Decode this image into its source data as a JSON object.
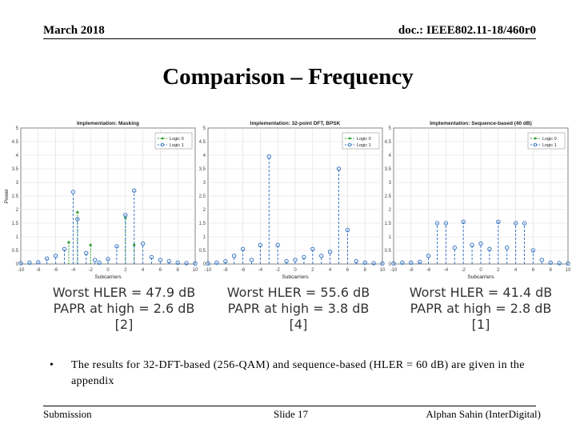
{
  "header": {
    "date": "March 2018",
    "doc": "doc.: IEEE802.11-18/460r0"
  },
  "title": "Comparison – Frequency",
  "charts": [
    {
      "title": "Implementation: Masking",
      "legend": [
        "Logic 0",
        "Logic 1"
      ],
      "xlabel": "Subcarriers",
      "ylabel": "Power",
      "caption": [
        "Worst HLER = 47.9 dB",
        "PAPR at high = 2.6 dB",
        "[2]"
      ]
    },
    {
      "title": "Implementation: 32-point DFT, BPSK",
      "legend": [
        "Logic 0",
        "Logic 1"
      ],
      "xlabel": "Subcarriers",
      "ylabel": "",
      "caption": [
        "Worst HLER = 55.6 dB",
        "PAPR at high = 3.8 dB",
        "[4]"
      ]
    },
    {
      "title": "Implementation: Sequence-based (40 dB)",
      "legend": [
        "Logic 0",
        "Logic 1"
      ],
      "xlabel": "Subcarriers",
      "ylabel": "",
      "caption": [
        "Worst HLER = 41.4 dB",
        "PAPR at high = 2.8 dB",
        "[1]"
      ]
    }
  ],
  "chart_data": [
    {
      "type": "scatter",
      "title": "Implementation: Masking",
      "xlabel": "Subcarriers",
      "ylabel": "Power",
      "xlim": [
        -10,
        10
      ],
      "ylim": [
        0,
        5
      ],
      "xticks": [
        -10,
        -8,
        -6,
        -4,
        -2,
        0,
        2,
        4,
        6,
        8,
        10
      ],
      "yticks": [
        0,
        0.5,
        1,
        1.5,
        2,
        2.5,
        3,
        3.5,
        4,
        4.5,
        5
      ],
      "grid": true,
      "legend_position": "top-right",
      "series": [
        {
          "name": "Logic 0",
          "color": "#2ca02c",
          "x": [
            -4.5,
            -3.5,
            -2,
            2,
            3
          ],
          "y": [
            0.8,
            1.9,
            0.7,
            1.7,
            0.7
          ]
        },
        {
          "name": "Logic 1",
          "color": "#3a77c4",
          "x": [
            -10,
            -9,
            -8,
            -7,
            -6,
            -5,
            -4,
            -3.5,
            -2.5,
            -1.5,
            -1,
            0,
            1,
            2,
            3,
            4,
            5,
            6,
            7,
            8,
            9,
            10
          ],
          "y": [
            0.03,
            0.05,
            0.06,
            0.2,
            0.3,
            0.55,
            2.65,
            1.65,
            0.4,
            0.15,
            0.05,
            0.18,
            0.65,
            1.8,
            2.7,
            0.75,
            0.25,
            0.15,
            0.1,
            0.05,
            0.03,
            0.02
          ]
        }
      ]
    },
    {
      "type": "scatter",
      "title": "Implementation: 32-point DFT, BPSK",
      "xlabel": "Subcarriers",
      "ylabel": "",
      "xlim": [
        -10,
        10
      ],
      "ylim": [
        0,
        5
      ],
      "xticks": [
        -10,
        -8,
        -6,
        -4,
        -2,
        0,
        2,
        4,
        6,
        8,
        10
      ],
      "yticks": [
        0,
        0.5,
        1,
        1.5,
        2,
        2.5,
        3,
        3.5,
        4,
        4.5,
        5
      ],
      "grid": true,
      "legend_position": "top-right",
      "series": [
        {
          "name": "Logic 0",
          "color": "#2ca02c",
          "x": [],
          "y": []
        },
        {
          "name": "Logic 1",
          "color": "#3a77c4",
          "x": [
            -10,
            -9,
            -8,
            -7,
            -6,
            -5,
            -4,
            -3,
            -2,
            -1,
            0,
            1,
            2,
            3,
            4,
            5,
            6,
            7,
            8,
            9,
            10
          ],
          "y": [
            0.02,
            0.05,
            0.1,
            0.3,
            0.55,
            0.15,
            0.7,
            3.95,
            0.7,
            0.1,
            0.15,
            0.25,
            0.55,
            0.3,
            0.45,
            3.5,
            1.25,
            0.1,
            0.05,
            0.03,
            0.02
          ]
        }
      ]
    },
    {
      "type": "scatter",
      "title": "Implementation: Sequence-based (40 dB)",
      "xlabel": "Subcarriers",
      "ylabel": "",
      "xlim": [
        -10,
        10
      ],
      "ylim": [
        0,
        5
      ],
      "xticks": [
        -10,
        -8,
        -6,
        -4,
        -2,
        0,
        2,
        4,
        6,
        8,
        10
      ],
      "yticks": [
        0,
        0.5,
        1,
        1.5,
        2,
        2.5,
        3,
        3.5,
        4,
        4.5,
        5
      ],
      "grid": true,
      "legend_position": "top-right",
      "series": [
        {
          "name": "Logic 0",
          "color": "#2ca02c",
          "x": [],
          "y": []
        },
        {
          "name": "Logic 1",
          "color": "#3a77c4",
          "x": [
            -10,
            -9,
            -8,
            -7,
            -6,
            -5,
            -4,
            -3,
            -2,
            -1,
            0,
            1,
            2,
            3,
            4,
            5,
            6,
            7,
            8,
            9,
            10
          ],
          "y": [
            0.02,
            0.05,
            0.05,
            0.08,
            0.3,
            1.5,
            1.5,
            0.6,
            1.55,
            0.7,
            0.75,
            0.55,
            1.55,
            0.6,
            1.5,
            1.5,
            0.5,
            0.15,
            0.05,
            0.03,
            0.02
          ]
        }
      ]
    }
  ],
  "bullet": {
    "symbol": "•",
    "text": "The results for 32-DFT-based (256-QAM) and sequence-based (HLER = 60 dB) are given in the appendix"
  },
  "footer": {
    "left": "Submission",
    "center": "Slide 17",
    "right": "Alphan Sahin (InterDigital)"
  }
}
